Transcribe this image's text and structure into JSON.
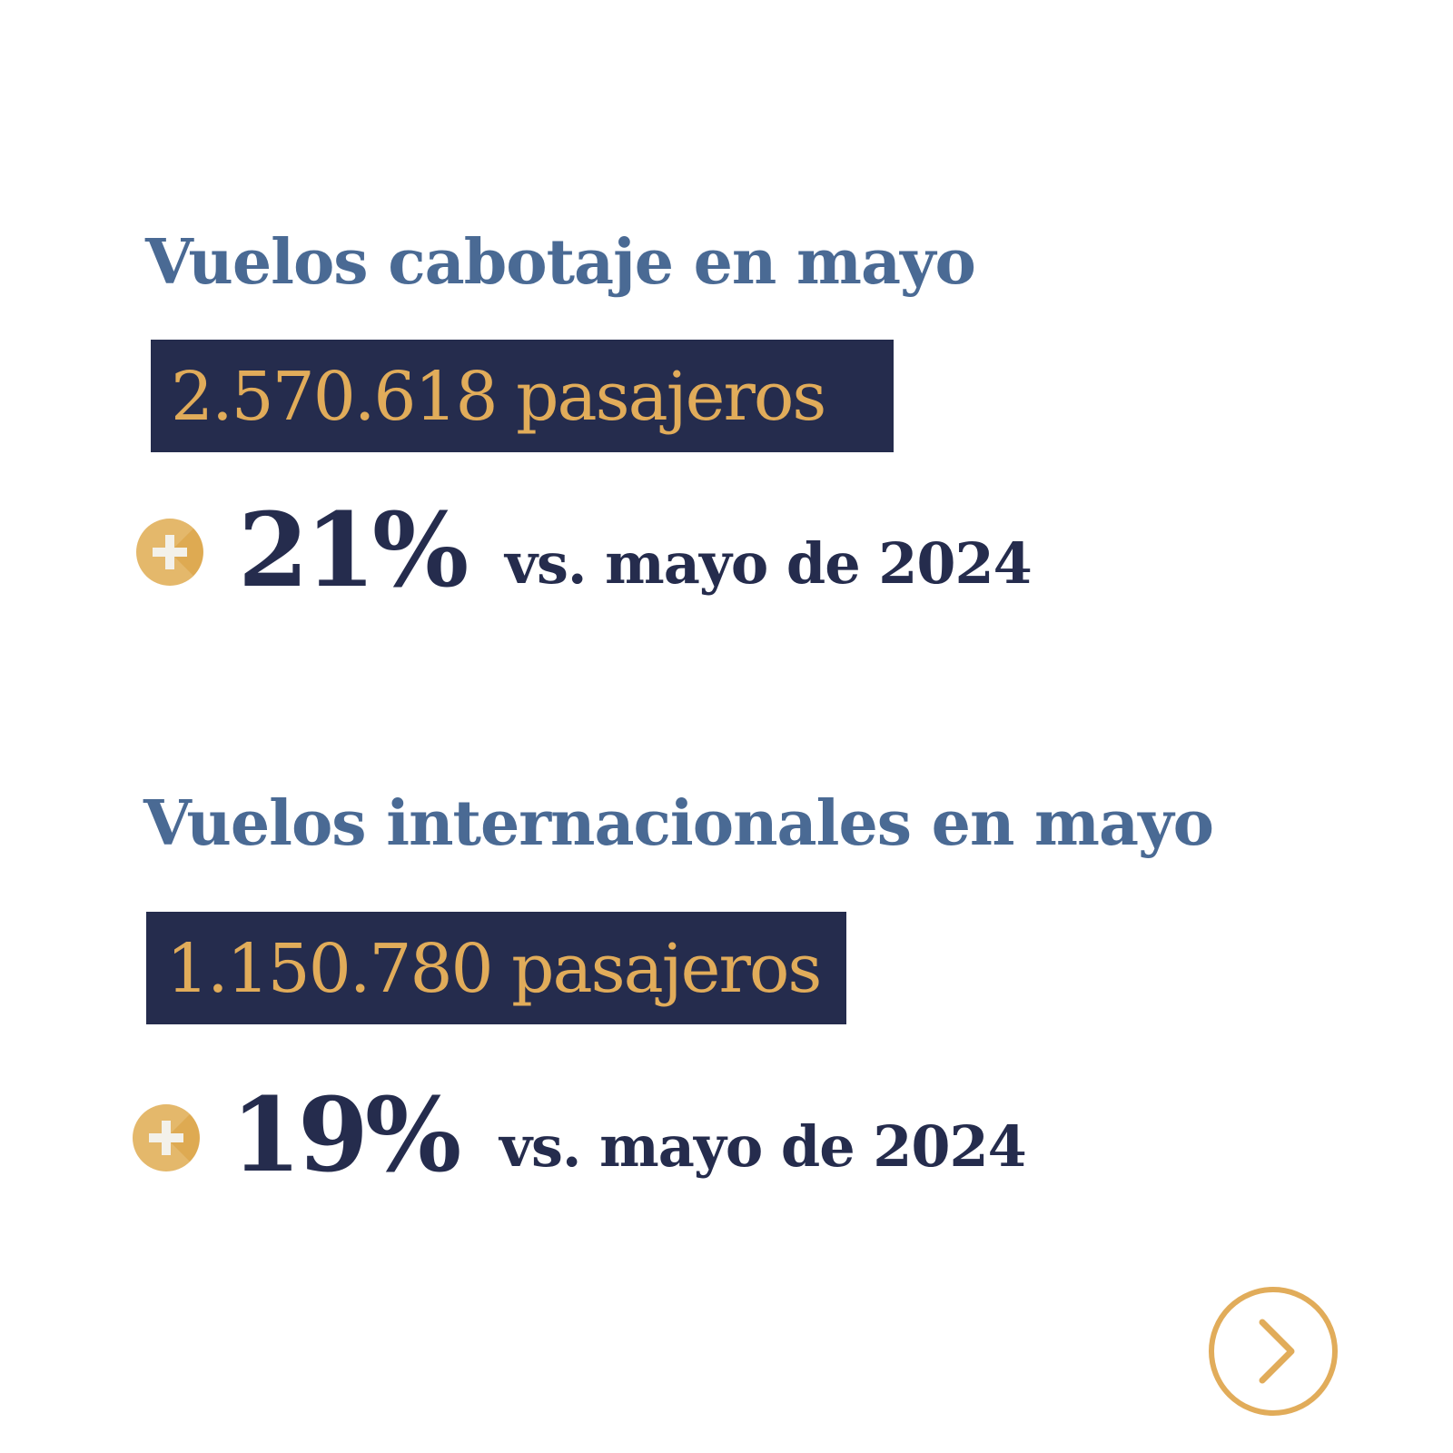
{
  "colors": {
    "heading": "#4a6a94",
    "box_bg": "#252c4d",
    "accent_gold": "#e1ac5a",
    "text_dark": "#252c4d",
    "background": "#ffffff"
  },
  "domestic": {
    "title": "Vuelos cabotaje en mayo",
    "passengers": "2.570.618 pasajeros",
    "change_icon": "plus-circle-icon",
    "change_pct": "21%",
    "comparison": "vs. mayo de 2024"
  },
  "international": {
    "title": "Vuelos internacionales en mayo",
    "passengers": "1.150.780 pasajeros",
    "change_icon": "plus-circle-icon",
    "change_pct": "19%",
    "comparison": "vs. mayo de 2024"
  },
  "navigation": {
    "next_icon": "chevron-right-circle-icon"
  }
}
